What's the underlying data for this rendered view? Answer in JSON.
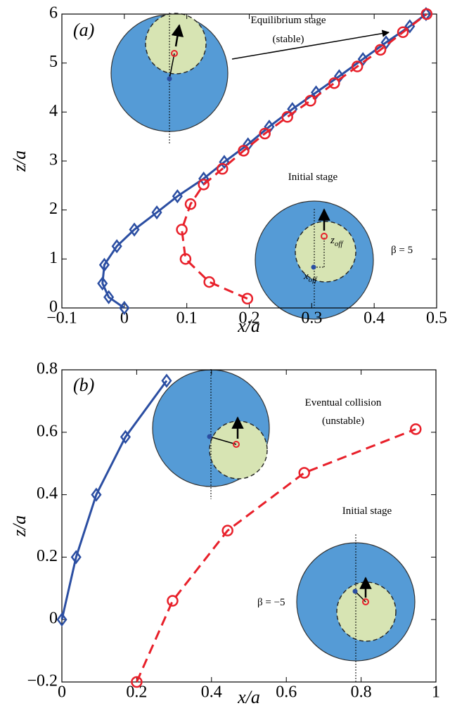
{
  "chart_data": [
    {
      "type": "line",
      "panel_label": "(a)",
      "xlabel": "x/a",
      "ylabel": "z/a",
      "xlim": [
        -0.1,
        0.5
      ],
      "ylim": [
        0,
        6
      ],
      "xticks": [
        {
          "value": -0.1,
          "label": "−0.1"
        },
        0,
        0.1,
        0.2,
        0.3,
        0.4,
        0.5
      ],
      "yticks": [
        0,
        1,
        2,
        3,
        4,
        5,
        6
      ],
      "series": [
        {
          "color": "#2b4ea2",
          "marker": "diamond",
          "dash": false,
          "x": [
            0,
            -0.025,
            -0.035,
            -0.032,
            -0.012,
            0.016,
            0.052,
            0.085,
            0.127,
            0.16,
            0.198,
            0.232,
            0.269,
            0.307,
            0.344,
            0.382,
            0.419,
            0.457,
            0.483
          ],
          "values": [
            0,
            0.22,
            0.5,
            0.88,
            1.26,
            1.6,
            1.95,
            2.28,
            2.64,
            2.98,
            3.34,
            3.7,
            4.06,
            4.4,
            4.73,
            5.08,
            5.42,
            5.75,
            6.0
          ]
        },
        {
          "color": "#e8202a",
          "marker": "circle",
          "dash": true,
          "x": [
            0.197,
            0.136,
            0.098,
            0.092,
            0.106,
            0.127,
            0.157,
            0.191,
            0.225,
            0.261,
            0.298,
            0.336,
            0.373,
            0.41,
            0.446,
            0.484
          ],
          "values": [
            0.19,
            0.53,
            1.0,
            1.6,
            2.12,
            2.52,
            2.84,
            3.21,
            3.56,
            3.9,
            4.23,
            4.59,
            4.93,
            5.27,
            5.63,
            6.0
          ]
        }
      ],
      "annotations": [
        {
          "text": "Equilibrium stage"
        },
        {
          "text": "(stable)"
        },
        {
          "text": "Initial stage"
        },
        {
          "text": "z",
          "sub": "off"
        },
        {
          "text": "x",
          "sub": "off"
        },
        {
          "text": "β = 5"
        }
      ]
    },
    {
      "type": "line",
      "panel_label": "(b)",
      "xlabel": "x/a",
      "ylabel": "z/a",
      "xlim": [
        0,
        1
      ],
      "ylim": [
        -0.2,
        0.8
      ],
      "xticks": [
        0,
        0.2,
        0.4,
        0.6,
        0.8,
        1
      ],
      "yticks": [
        {
          "value": -0.2,
          "label": "−0.2"
        },
        0,
        0.2,
        0.4,
        0.6,
        0.8
      ],
      "series": [
        {
          "color": "#2b4ea2",
          "marker": "diamond",
          "dash": false,
          "x": [
            0,
            0.038,
            0.092,
            0.17,
            0.28
          ],
          "values": [
            0,
            0.2,
            0.4,
            0.585,
            0.765
          ]
        },
        {
          "color": "#e8202a",
          "marker": "circle",
          "dash": true,
          "x": [
            0.2,
            0.296,
            0.443,
            0.648,
            0.946
          ],
          "values": [
            -0.2,
            0.06,
            0.285,
            0.47,
            0.61
          ]
        }
      ],
      "annotations": [
        {
          "text": "Eventual collision"
        },
        {
          "text": "(unstable)"
        },
        {
          "text": "Initial stage"
        },
        {
          "text": "β = −5"
        }
      ]
    }
  ]
}
